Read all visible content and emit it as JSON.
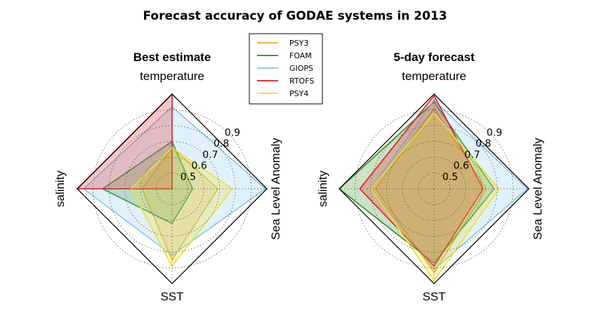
{
  "title": "Forecast accuracy of GODAE systems in 2013",
  "legend": [
    {
      "name": "PSY3",
      "color": "#f5a623"
    },
    {
      "name": "FOAM",
      "color": "#2a8a1f"
    },
    {
      "name": "GIOPS",
      "color": "#87c6e8"
    },
    {
      "name": "RTOFS",
      "color": "#e31a1c"
    },
    {
      "name": "PSY4",
      "color": "#f0e02a"
    }
  ],
  "chart_data": [
    {
      "type": "radar",
      "title": "Best estimate",
      "axes": [
        "temperature",
        "Sea Level Anomaly",
        "SST",
        "salinity"
      ],
      "rlim": [
        0.4,
        1.0
      ],
      "tick_values": [
        0.5,
        0.6,
        0.7,
        0.8,
        0.9
      ],
      "tick_labels": [
        "0.5",
        "0.6",
        "0.7",
        "0.8",
        "0.9"
      ],
      "grid": true,
      "series": [
        {
          "name": "PSY3",
          "values": [
            0.66,
            0.69,
            0.85,
            0.59
          ],
          "color": "#f5a623"
        },
        {
          "name": "FOAM",
          "values": [
            0.7,
            0.53,
            0.62,
            0.84
          ],
          "color": "#2a8a1f"
        },
        {
          "name": "GIOPS",
          "values": [
            0.92,
            0.99,
            0.82,
            0.96
          ],
          "color": "#87c6e8"
        },
        {
          "name": "RTOFS",
          "values": [
            1.0,
            0.4,
            0.4,
            1.0
          ],
          "color": "#e31a1c"
        },
        {
          "name": "PSY4",
          "values": [
            0.66,
            0.78,
            0.89,
            0.66
          ],
          "color": "#f0e02a"
        }
      ]
    },
    {
      "type": "radar",
      "title": "5-day forecast",
      "axes": [
        "temperature",
        "Sea Level Anomaly",
        "SST",
        "salinity"
      ],
      "rlim": [
        0.4,
        1.0
      ],
      "tick_values": [
        0.5,
        0.6,
        0.7,
        0.8,
        0.9
      ],
      "tick_labels": [
        "0.5",
        "0.6",
        "0.7",
        "0.8",
        "0.9"
      ],
      "grid": true,
      "series": [
        {
          "name": "PSY3",
          "values": [
            0.91,
            0.73,
            0.93,
            0.77
          ],
          "color": "#f5a623"
        },
        {
          "name": "FOAM",
          "values": [
            0.95,
            0.78,
            0.87,
            1.0
          ],
          "color": "#2a8a1f"
        },
        {
          "name": "GIOPS",
          "values": [
            0.96,
            0.99,
            0.91,
            0.8
          ],
          "color": "#87c6e8"
        },
        {
          "name": "RTOFS",
          "values": [
            0.99,
            0.71,
            0.89,
            0.87
          ],
          "color": "#e31a1c"
        },
        {
          "name": "PSY4",
          "values": [
            0.88,
            0.81,
            0.98,
            0.8
          ],
          "color": "#f0e02a"
        }
      ]
    }
  ]
}
